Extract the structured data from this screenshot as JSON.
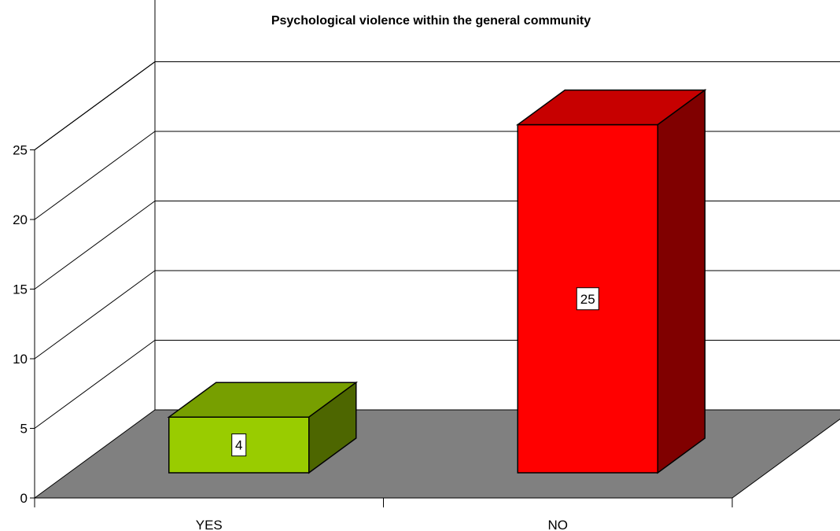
{
  "chart_data": {
    "type": "bar",
    "title": "Psychological violence within the general community",
    "categories": [
      "YES",
      "NO"
    ],
    "values": [
      4,
      25
    ],
    "colors": [
      "#99CC00",
      "#FF0000"
    ],
    "y_ticks": [
      "0",
      "5",
      "10",
      "15",
      "20",
      "25"
    ],
    "ylim": [
      0,
      25
    ],
    "style": "3d-column",
    "floor_color": "#808080",
    "grid": true,
    "legend": "none",
    "data_labels": [
      "4",
      "25"
    ]
  }
}
